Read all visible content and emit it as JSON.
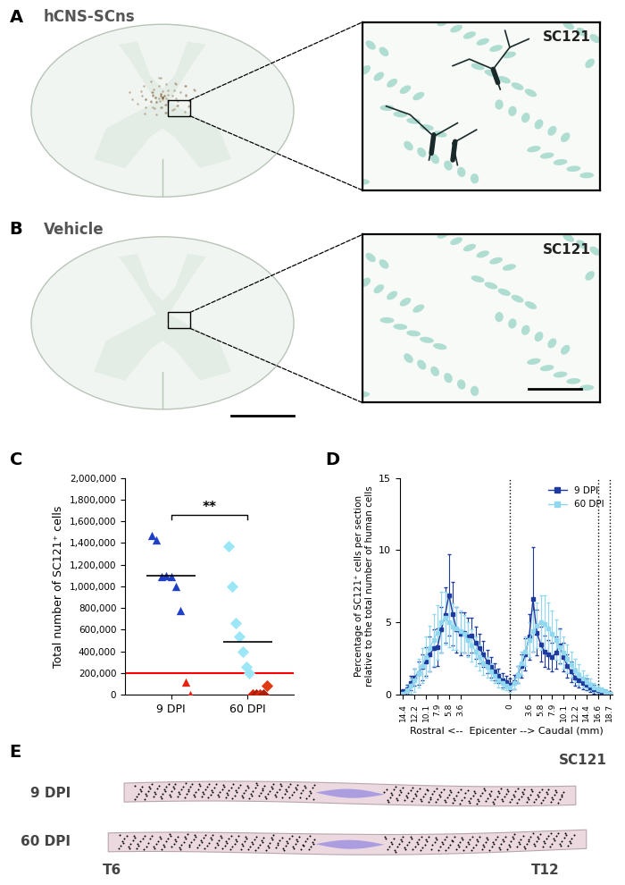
{
  "panels": {
    "A": {
      "label": "A",
      "title": "hCNS-SCns",
      "inset_label": "SC121",
      "stained": true
    },
    "B": {
      "label": "B",
      "title": "Vehicle",
      "inset_label": "SC121",
      "stained": false
    },
    "E": {
      "label": "E",
      "marker_label": "SC121",
      "rows": [
        "9 DPI",
        "60 DPI"
      ],
      "rostral_end": "T6",
      "caudal_end": "T12"
    }
  },
  "chart_data": [
    {
      "panel_label": "C",
      "type": "scatter",
      "categories": [
        "9 DPI",
        "60 DPI"
      ],
      "ylabel": "Total number of SC121⁺ cells",
      "ylim": [
        0,
        2000000
      ],
      "yticks": [
        0,
        {
          "value": 200000,
          "label": "200,000"
        },
        {
          "value": 400000,
          "label": "400,000"
        },
        {
          "value": 600000,
          "label": "600,000"
        },
        {
          "value": 800000,
          "label": "800,000"
        },
        {
          "value": 1000000,
          "label": "1,000,000"
        },
        {
          "value": 1200000,
          "label": "1,200,000"
        },
        {
          "value": 1400000,
          "label": "1,400,000"
        },
        {
          "value": 1600000,
          "label": "1,600,000"
        },
        {
          "value": 1800000,
          "label": "1,800,000"
        },
        {
          "value": 2000000,
          "label": "2,000,000"
        }
      ],
      "groups": [
        {
          "values": [
            1470000,
            1430000,
            1090000,
            1100000,
            1090000,
            1000000,
            780000,
            120000,
            0
          ],
          "colors": [
            "#1f3fc4",
            "#1f3fc4",
            "#1f3fc4",
            "#1f3fc4",
            "#1f3fc4",
            "#1f3fc4",
            "#1f3fc4",
            "#e8210f",
            "#e8210f"
          ],
          "marker": "triangle",
          "mean": 1100000
        },
        {
          "values": [
            1370000,
            1000000,
            660000,
            540000,
            400000,
            260000,
            200000,
            0,
            0,
            0,
            0,
            80000
          ],
          "colors": [
            "#9be7f7",
            "#9be7f7",
            "#9be7f7",
            "#9be7f7",
            "#9be7f7",
            "#9be7f7",
            "#9be7f7",
            "#d3260f",
            "#a8200c",
            "#d3260f",
            "#a8200c",
            "#e03a12"
          ],
          "marker": "diamond",
          "mean": 490000
        }
      ],
      "threshold": 200000,
      "significance": "**"
    },
    {
      "panel_label": "D",
      "type": "line",
      "categories": [
        "14.4",
        null,
        null,
        "12.2",
        null,
        null,
        "10.1",
        null,
        null,
        "7.9",
        null,
        null,
        "5.8",
        null,
        null,
        "3.6",
        null,
        null,
        null,
        null,
        null,
        null,
        null,
        null,
        null,
        null,
        null,
        null,
        "0",
        null,
        null,
        null,
        null,
        "3.6",
        null,
        null,
        "5.8",
        null,
        null,
        "7.9",
        null,
        null,
        "10.1",
        null,
        null,
        "12.2",
        null,
        null,
        "14.4",
        null,
        null,
        "16.6",
        null,
        null,
        "18.7"
      ],
      "xlabel": "Rostral <--  Epicenter --> Caudal (mm)",
      "ylabel": "Percentage of SC121⁺ cells per section\nrelative to the total number of human cells",
      "ylim": [
        0,
        15
      ],
      "yticks": [
        0,
        5,
        10,
        15
      ],
      "legend": "upper right",
      "series": [
        {
          "name": "9 DPI",
          "color": "#1f3a9e",
          "marker": "square",
          "values": [
            0.2,
            0.4,
            0.8,
            1.2,
            1.5,
            1.9,
            2.3,
            2.8,
            3.2,
            3.3,
            4.5,
            5.5,
            6.9,
            5.6,
            4.5,
            4.2,
            4.3,
            4.0,
            4.1,
            3.6,
            3.2,
            2.8,
            2.3,
            1.9,
            1.6,
            1.3,
            1.0,
            0.9,
            0.7,
            0.9,
            1.4,
            2.0,
            2.8,
            4.0,
            6.6,
            4.3,
            3.5,
            3.0,
            2.8,
            2.6,
            2.9,
            3.4,
            2.6,
            2.0,
            1.6,
            1.2,
            1.0,
            0.8,
            0.7,
            0.5,
            0.4,
            0.3,
            0.2,
            0.2,
            0.1
          ],
          "errors": [
            0.2,
            0.3,
            0.5,
            0.6,
            0.8,
            0.9,
            1.0,
            1.2,
            1.3,
            1.3,
            1.6,
            1.9,
            2.8,
            2.2,
            1.6,
            1.5,
            1.4,
            1.3,
            1.2,
            1.1,
            1.0,
            0.9,
            0.8,
            0.7,
            0.6,
            0.5,
            0.5,
            0.4,
            0.4,
            0.5,
            0.6,
            0.8,
            1.1,
            1.6,
            3.6,
            1.6,
            1.2,
            1.1,
            1.0,
            1.0,
            1.1,
            1.2,
            1.0,
            0.8,
            0.7,
            0.6,
            0.5,
            0.4,
            0.4,
            0.3,
            0.3,
            0.2,
            0.2,
            0.1,
            0.1
          ]
        },
        {
          "name": "60 DPI",
          "color": "#8fd8f0",
          "marker": "square",
          "values": [
            0.1,
            0.3,
            0.6,
            1.0,
            1.5,
            2.0,
            2.6,
            3.2,
            3.8,
            4.3,
            5.0,
            5.3,
            5.0,
            4.7,
            4.6,
            4.4,
            4.2,
            3.8,
            3.4,
            3.0,
            2.6,
            2.2,
            1.9,
            1.6,
            1.3,
            1.0,
            0.8,
            0.6,
            0.5,
            0.8,
            1.4,
            2.2,
            3.0,
            3.8,
            4.4,
            4.8,
            5.0,
            4.9,
            4.6,
            4.2,
            3.8,
            3.3,
            2.9,
            2.5,
            2.1,
            1.7,
            1.4,
            1.1,
            0.9,
            0.7,
            0.5,
            0.4,
            0.3,
            0.2,
            0.1
          ],
          "errors": [
            0.1,
            0.3,
            0.5,
            0.8,
            1.0,
            1.2,
            1.4,
            1.6,
            1.8,
            1.9,
            2.1,
            1.8,
            1.7,
            1.6,
            1.5,
            1.4,
            1.3,
            1.2,
            1.1,
            1.0,
            0.9,
            0.8,
            0.7,
            0.6,
            0.5,
            0.5,
            0.4,
            0.3,
            0.3,
            0.4,
            0.6,
            0.8,
            1.0,
            1.2,
            1.4,
            1.6,
            1.9,
            2.0,
            1.8,
            1.6,
            1.4,
            1.2,
            1.1,
            1.0,
            0.9,
            0.8,
            0.7,
            0.6,
            0.5,
            0.4,
            0.3,
            0.3,
            0.2,
            0.2,
            0.1
          ]
        }
      ]
    }
  ]
}
